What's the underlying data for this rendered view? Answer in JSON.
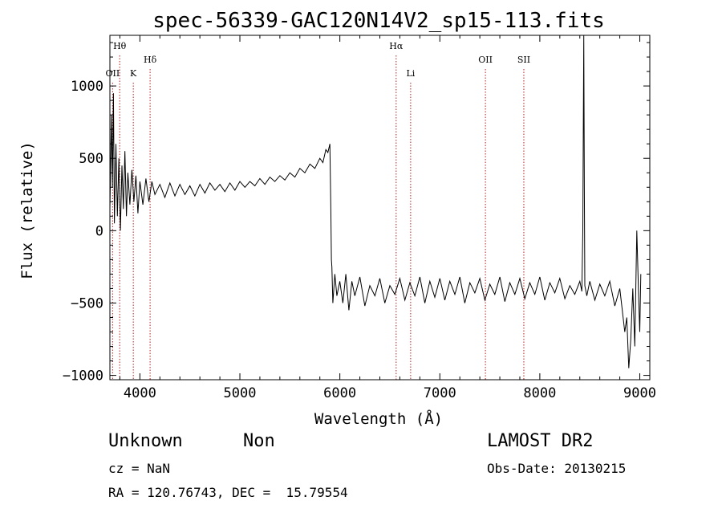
{
  "chart_data": {
    "type": "line",
    "title": "spec-56339-GAC120N14V2_sp15-113.fits",
    "xlabel": "Wavelength (Å)",
    "ylabel": "Flux (relative)",
    "xlim": [
      3700,
      9100
    ],
    "ylim": [
      -1030,
      1350
    ],
    "xticks": [
      4000,
      5000,
      6000,
      7000,
      8000,
      9000
    ],
    "yticks": [
      -1000,
      -500,
      0,
      500,
      1000
    ],
    "line_color": "#000000",
    "marker_color": "#b22222",
    "spectral_lines": [
      {
        "label": "OII",
        "wavelength": 3727,
        "row": 3
      },
      {
        "label": "Hθ",
        "wavelength": 3798,
        "row": 1
      },
      {
        "label": "K",
        "wavelength": 3934,
        "row": 3
      },
      {
        "label": "Hδ",
        "wavelength": 4102,
        "row": 2
      },
      {
        "label": "Hα",
        "wavelength": 6563,
        "row": 1
      },
      {
        "label": "Li",
        "wavelength": 6708,
        "row": 3
      },
      {
        "label": "OII",
        "wavelength": 7456,
        "row": 2
      },
      {
        "label": "SII",
        "wavelength": 7840,
        "row": 2
      }
    ],
    "series": [
      {
        "values": [
          [
            3700,
            150
          ],
          [
            3715,
            800
          ],
          [
            3725,
            300
          ],
          [
            3735,
            950
          ],
          [
            3745,
            50
          ],
          [
            3760,
            600
          ],
          [
            3775,
            100
          ],
          [
            3790,
            500
          ],
          [
            3805,
            0
          ],
          [
            3820,
            450
          ],
          [
            3835,
            150
          ],
          [
            3850,
            550
          ],
          [
            3865,
            100
          ],
          [
            3880,
            400
          ],
          [
            3900,
            180
          ],
          [
            3920,
            420
          ],
          [
            3940,
            200
          ],
          [
            3960,
            380
          ],
          [
            3980,
            120
          ],
          [
            4000,
            340
          ],
          [
            4030,
            180
          ],
          [
            4060,
            360
          ],
          [
            4090,
            200
          ],
          [
            4120,
            340
          ],
          [
            4150,
            250
          ],
          [
            4200,
            320
          ],
          [
            4250,
            230
          ],
          [
            4300,
            330
          ],
          [
            4350,
            240
          ],
          [
            4400,
            320
          ],
          [
            4450,
            250
          ],
          [
            4500,
            310
          ],
          [
            4550,
            240
          ],
          [
            4600,
            320
          ],
          [
            4650,
            260
          ],
          [
            4700,
            330
          ],
          [
            4750,
            280
          ],
          [
            4800,
            320
          ],
          [
            4850,
            270
          ],
          [
            4900,
            330
          ],
          [
            4950,
            280
          ],
          [
            5000,
            340
          ],
          [
            5050,
            300
          ],
          [
            5100,
            340
          ],
          [
            5150,
            310
          ],
          [
            5200,
            360
          ],
          [
            5250,
            320
          ],
          [
            5300,
            370
          ],
          [
            5350,
            340
          ],
          [
            5400,
            380
          ],
          [
            5450,
            350
          ],
          [
            5500,
            400
          ],
          [
            5550,
            370
          ],
          [
            5600,
            430
          ],
          [
            5650,
            400
          ],
          [
            5700,
            460
          ],
          [
            5750,
            430
          ],
          [
            5800,
            500
          ],
          [
            5830,
            470
          ],
          [
            5860,
            560
          ],
          [
            5880,
            540
          ],
          [
            5900,
            600
          ],
          [
            5910,
            150
          ],
          [
            5915,
            -200
          ],
          [
            5920,
            -250
          ],
          [
            5930,
            -500
          ],
          [
            5950,
            -300
          ],
          [
            5970,
            -450
          ],
          [
            6000,
            -350
          ],
          [
            6030,
            -500
          ],
          [
            6060,
            -300
          ],
          [
            6090,
            -550
          ],
          [
            6120,
            -350
          ],
          [
            6150,
            -450
          ],
          [
            6200,
            -320
          ],
          [
            6250,
            -520
          ],
          [
            6300,
            -380
          ],
          [
            6350,
            -450
          ],
          [
            6400,
            -330
          ],
          [
            6450,
            -500
          ],
          [
            6500,
            -380
          ],
          [
            6550,
            -440
          ],
          [
            6600,
            -330
          ],
          [
            6650,
            -480
          ],
          [
            6700,
            -360
          ],
          [
            6750,
            -450
          ],
          [
            6800,
            -320
          ],
          [
            6850,
            -500
          ],
          [
            6900,
            -350
          ],
          [
            6950,
            -460
          ],
          [
            7000,
            -330
          ],
          [
            7050,
            -480
          ],
          [
            7100,
            -350
          ],
          [
            7150,
            -440
          ],
          [
            7200,
            -320
          ],
          [
            7250,
            -500
          ],
          [
            7300,
            -360
          ],
          [
            7350,
            -430
          ],
          [
            7400,
            -330
          ],
          [
            7450,
            -480
          ],
          [
            7500,
            -370
          ],
          [
            7550,
            -440
          ],
          [
            7600,
            -320
          ],
          [
            7650,
            -490
          ],
          [
            7700,
            -360
          ],
          [
            7750,
            -440
          ],
          [
            7800,
            -330
          ],
          [
            7850,
            -470
          ],
          [
            7900,
            -360
          ],
          [
            7950,
            -440
          ],
          [
            8000,
            -320
          ],
          [
            8050,
            -480
          ],
          [
            8100,
            -360
          ],
          [
            8150,
            -430
          ],
          [
            8200,
            -330
          ],
          [
            8250,
            -470
          ],
          [
            8300,
            -380
          ],
          [
            8350,
            -440
          ],
          [
            8400,
            -350
          ],
          [
            8420,
            -420
          ],
          [
            8430,
            0
          ],
          [
            8440,
            1350
          ],
          [
            8445,
            300
          ],
          [
            8450,
            -380
          ],
          [
            8470,
            -450
          ],
          [
            8500,
            -350
          ],
          [
            8550,
            -480
          ],
          [
            8600,
            -370
          ],
          [
            8650,
            -450
          ],
          [
            8700,
            -350
          ],
          [
            8750,
            -520
          ],
          [
            8800,
            -400
          ],
          [
            8850,
            -700
          ],
          [
            8870,
            -600
          ],
          [
            8890,
            -950
          ],
          [
            8910,
            -750
          ],
          [
            8930,
            -400
          ],
          [
            8950,
            -800
          ],
          [
            8970,
            0
          ],
          [
            8990,
            -500
          ],
          [
            9000,
            -700
          ],
          [
            9010,
            -300
          ]
        ]
      }
    ]
  },
  "info": {
    "class_label": "Unknown",
    "subclass_label": "Non",
    "cz_line": "cz = NaN",
    "radec_line": "RA = 120.76743, DEC =  15.79554",
    "survey_label": "LAMOST DR2",
    "obs_date_line": "Obs-Date: 20130215"
  }
}
